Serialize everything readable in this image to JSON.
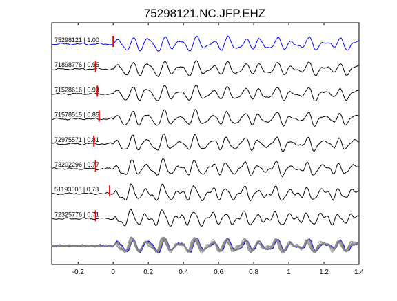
{
  "chart_data": {
    "type": "line",
    "title": "75298121.NC.JFP.EHZ",
    "xlabel": "",
    "ylabel": "",
    "xlim": [
      -0.35,
      1.4
    ],
    "xticks": [
      -0.2,
      0,
      0.2,
      0.4,
      0.6,
      0.8,
      1.0,
      1.2,
      1.4
    ],
    "xtick_labels": [
      "-0.2",
      "0",
      "0.2",
      "0.4",
      "0.6",
      "0.8",
      "1",
      "1.2",
      "1.4"
    ],
    "grid": false,
    "legend": "none",
    "colors": {
      "reference": "#0000ff",
      "trace": "#000000",
      "pick": "#ff0000",
      "stack": "#808080"
    },
    "traces": [
      {
        "label": "75298121 | 1.00",
        "event_id": "75298121",
        "cc": 1.0,
        "pick_time": 0.0,
        "reference": true
      },
      {
        "label": "71898776 | 0.95",
        "event_id": "71898776",
        "cc": 0.95,
        "pick_time": -0.1
      },
      {
        "label": "71528616 | 0.93",
        "event_id": "71528616",
        "cc": 0.93,
        "pick_time": -0.09
      },
      {
        "label": "71578515 | 0.85",
        "event_id": "71578515",
        "cc": 0.85,
        "pick_time": -0.08
      },
      {
        "label": "72975571 | 0.81",
        "event_id": "72975571",
        "cc": 0.81,
        "pick_time": -0.11
      },
      {
        "label": "73202296 | 0.77",
        "event_id": "73202296",
        "cc": 0.77,
        "pick_time": -0.1
      },
      {
        "label": "51193508 | 0.73",
        "event_id": "51193508",
        "cc": 0.73,
        "pick_time": -0.02
      },
      {
        "label": "72325776 | 0.71",
        "event_id": "72325776",
        "cc": 0.71,
        "pick_time": -0.1
      }
    ],
    "stack": {
      "description": "overlay of all traces",
      "count": 8
    }
  }
}
